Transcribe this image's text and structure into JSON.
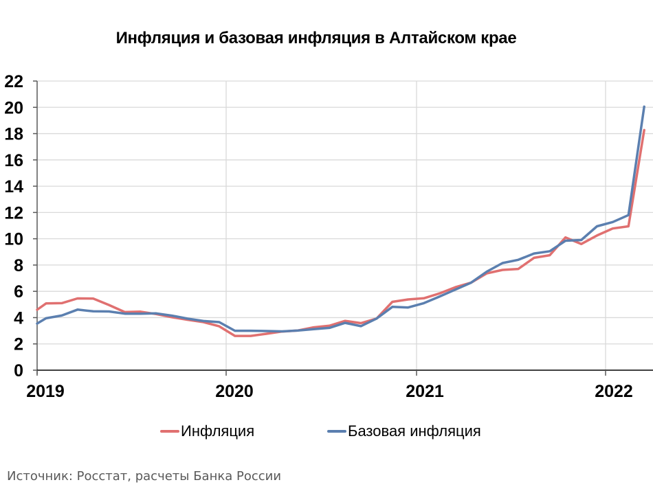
{
  "title": "Инфляция и базовая инфляция в Алтайском крае",
  "legend": {
    "items": [
      {
        "label": "Инфляция",
        "color": "#E07070"
      },
      {
        "label": "Базовая инфляция",
        "color": "#5B7FAF"
      }
    ]
  },
  "source": "Источник: Росстат, расчеты Банка России",
  "chart_data": {
    "type": "line",
    "title": "Инфляция и базовая инфляция в Алтайском крае",
    "xlabel": "",
    "ylabel": "",
    "ylim": [
      0,
      22
    ],
    "yticks": [
      0,
      2,
      4,
      6,
      8,
      10,
      12,
      14,
      16,
      18,
      20,
      22
    ],
    "xtick_labels": [
      "2019",
      "2020",
      "2021",
      "2022"
    ],
    "grid": true,
    "legend_position": "bottom",
    "x": [
      "2018-12",
      "2019-01",
      "2019-02",
      "2019-03",
      "2019-04",
      "2019-05",
      "2019-06",
      "2019-07",
      "2019-08",
      "2019-09",
      "2019-10",
      "2019-11",
      "2019-12",
      "2020-01",
      "2020-02",
      "2020-03",
      "2020-04",
      "2020-05",
      "2020-06",
      "2020-07",
      "2020-08",
      "2020-09",
      "2020-10",
      "2020-11",
      "2020-12",
      "2021-01",
      "2021-02",
      "2021-03",
      "2021-04",
      "2021-05",
      "2021-06",
      "2021-07",
      "2021-08",
      "2021-09",
      "2021-10",
      "2021-11",
      "2021-12",
      "2022-01",
      "2022-02",
      "2022-03"
    ],
    "series": [
      {
        "name": "Инфляция",
        "color": "#E07070",
        "values": [
          4.6,
          5.08,
          5.1,
          5.46,
          5.45,
          4.96,
          4.42,
          4.45,
          4.27,
          4.03,
          3.83,
          3.66,
          3.34,
          2.61,
          2.61,
          2.77,
          2.94,
          3.02,
          3.26,
          3.38,
          3.75,
          3.58,
          3.93,
          5.2,
          5.38,
          5.47,
          5.84,
          6.31,
          6.66,
          7.37,
          7.63,
          7.7,
          8.55,
          8.75,
          10.1,
          9.6,
          10.25,
          10.78,
          10.95,
          18.27
        ]
      },
      {
        "name": "Базовая инфляция",
        "color": "#5B7FAF",
        "values": [
          3.55,
          3.95,
          4.16,
          4.61,
          4.48,
          4.47,
          4.3,
          4.3,
          4.32,
          4.15,
          3.92,
          3.74,
          3.66,
          3.0,
          3.0,
          2.98,
          2.95,
          3.02,
          3.12,
          3.22,
          3.6,
          3.35,
          3.93,
          4.82,
          4.77,
          5.1,
          5.6,
          6.13,
          6.66,
          7.5,
          8.15,
          8.4,
          8.88,
          9.05,
          9.85,
          9.9,
          10.95,
          11.27,
          11.8,
          20.05
        ]
      }
    ]
  }
}
